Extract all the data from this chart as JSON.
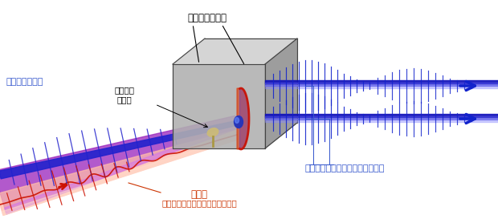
{
  "background_color": "#ffffff",
  "fig_width": 6.2,
  "fig_height": 2.73,
  "dpi": 100,
  "labels": {
    "silicon_mirror": "シリコン反射鏡",
    "apt_input": "アト秒パルス列",
    "delay_adjust": "遅延時間\nの調整",
    "apt_output": "上下に分割されたアト秒パルス列",
    "fundamental": "基本波",
    "fs_laser": "（フェムト秒レーザーパルス光）"
  },
  "colors": {
    "blue_beam": "#2222cc",
    "blue_label": "#3355cc",
    "orange_label": "#cc3300",
    "mirror_light": "#c8c8c8",
    "mirror_mid": "#a0a0a0",
    "mirror_dark": "#787878",
    "mirror_edge": "#505050"
  }
}
